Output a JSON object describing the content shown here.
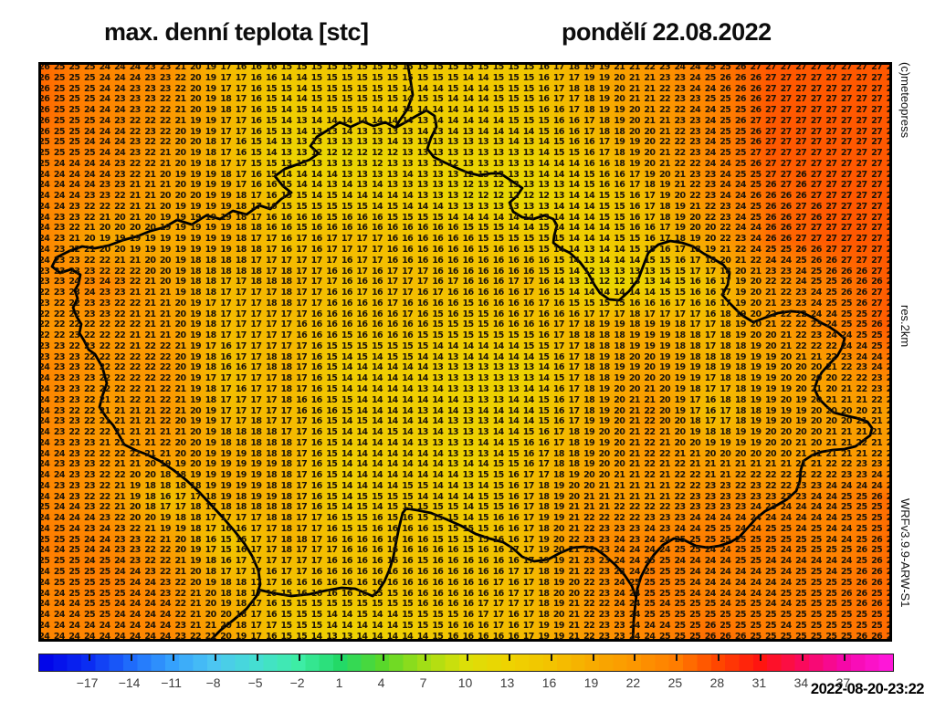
{
  "header": {
    "title": "max. denní teplota [stc]",
    "date": "pondělí 22.08.2022"
  },
  "side_labels": {
    "copyright": "(c)meteopress",
    "resolution": "res.2km",
    "model": "WRFv3.9.9-ARW-S1",
    "timestamp": "2022-08-20-23:22"
  },
  "chart_data": {
    "type": "heatmap",
    "title": "max. denní teplota [stc]",
    "subtitle": "pondělí 22.08.2022",
    "grid": {
      "cols": 57,
      "rows": 54
    },
    "control_grid": {
      "col_index": [
        0,
        4,
        8,
        12,
        16,
        20,
        24,
        28,
        32,
        36,
        40,
        44,
        48,
        52,
        56
      ],
      "row_index": [
        0,
        4,
        8,
        12,
        16,
        20,
        24,
        28,
        32,
        36,
        40,
        44,
        48,
        53
      ],
      "values": [
        [
          26,
          24,
          23,
          17,
          15,
          15,
          15,
          15,
          15,
          19,
          22,
          25,
          27,
          27,
          27
        ],
        [
          26,
          24,
          22,
          18,
          14,
          15,
          14,
          14,
          15,
          18,
          21,
          24,
          27,
          27,
          27
        ],
        [
          25,
          24,
          21,
          17,
          13,
          12,
          13,
          13,
          13,
          16,
          20,
          24,
          27,
          27,
          27
        ],
        [
          24,
          23,
          20,
          19,
          15,
          14,
          14,
          12,
          12,
          14,
          17,
          23,
          26,
          27,
          27
        ],
        [
          24,
          19,
          19,
          19,
          16,
          17,
          16,
          16,
          15,
          14,
          16,
          20,
          26,
          27,
          27
        ],
        [
          23,
          24,
          20,
          17,
          18,
          16,
          17,
          16,
          17,
          12,
          13,
          16,
          22,
          25,
          27
        ],
        [
          22,
          22,
          21,
          17,
          17,
          16,
          16,
          15,
          16,
          18,
          19,
          17,
          21,
          24,
          27
        ],
        [
          24,
          22,
          22,
          16,
          18,
          14,
          14,
          13,
          13,
          18,
          20,
          18,
          19,
          21,
          25
        ],
        [
          24,
          21,
          22,
          17,
          17,
          15,
          14,
          13,
          14,
          18,
          22,
          16,
          19,
          20,
          21
        ],
        [
          24,
          22,
          21,
          19,
          18,
          14,
          14,
          13,
          16,
          19,
          22,
          20,
          20,
          21,
          22
        ],
        [
          24,
          22,
          16,
          19,
          18,
          14,
          15,
          14,
          17,
          21,
          21,
          23,
          23,
          24,
          26
        ],
        [
          25,
          24,
          21,
          15,
          18,
          16,
          16,
          15,
          17,
          23,
          24,
          25,
          25,
          24,
          26
        ],
        [
          24,
          25,
          23,
          18,
          16,
          16,
          16,
          16,
          17,
          22,
          25,
          24,
          24,
          25,
          26
        ],
        [
          24,
          24,
          24,
          20,
          15,
          13,
          14,
          16,
          17,
          22,
          24,
          26,
          25,
          25,
          26
        ]
      ]
    },
    "colorbar": {
      "domain": [
        -20.5,
        40.5
      ],
      "ticks": [
        -17,
        -14,
        -11,
        -8,
        -5,
        -2,
        1,
        4,
        7,
        10,
        13,
        16,
        19,
        22,
        25,
        28,
        31,
        34,
        37
      ],
      "stops": [
        {
          "v": -20.5,
          "c": "#0000e8"
        },
        {
          "v": -17,
          "c": "#0b2df2"
        },
        {
          "v": -14,
          "c": "#1f6bfb"
        },
        {
          "v": -11,
          "c": "#35a1fd"
        },
        {
          "v": -8,
          "c": "#4cc6f2"
        },
        {
          "v": -5,
          "c": "#45ded2"
        },
        {
          "v": -2,
          "c": "#3deda5"
        },
        {
          "v": 1,
          "c": "#23d967"
        },
        {
          "v": 4,
          "c": "#59d82b"
        },
        {
          "v": 7,
          "c": "#a2de16"
        },
        {
          "v": 10,
          "c": "#dcdf08"
        },
        {
          "v": 13,
          "c": "#eed301"
        },
        {
          "v": 16,
          "c": "#f3c300"
        },
        {
          "v": 19,
          "c": "#f8ab00"
        },
        {
          "v": 22,
          "c": "#fc9700"
        },
        {
          "v": 25,
          "c": "#ff7d00"
        },
        {
          "v": 28,
          "c": "#ff4600"
        },
        {
          "v": 31,
          "c": "#ff1510"
        },
        {
          "v": 34,
          "c": "#fa0a5c"
        },
        {
          "v": 37,
          "c": "#f508a8"
        },
        {
          "v": 40.5,
          "c": "#ff1ae0"
        }
      ]
    },
    "borders": [
      [
        404,
        0,
        407,
        16,
        410,
        36,
        404,
        52,
        395,
        65,
        391,
        72
      ],
      [
        391,
        72,
        380,
        66,
        367,
        70,
        355,
        65,
        342,
        71,
        330,
        66,
        318,
        74,
        305,
        82,
        298,
        92,
        307,
        100,
        297,
        107,
        284,
        112,
        270,
        117,
        259,
        125,
        268,
        136,
        277,
        143,
        266,
        150,
        254,
        161,
        242,
        157,
        228,
        167,
        213,
        163,
        199,
        172,
        184,
        168,
        168,
        178,
        152,
        173,
        138,
        181,
        123,
        185,
        108,
        191,
        93,
        195,
        77,
        201,
        62,
        204,
        48,
        202,
        34,
        207,
        20,
        214,
        15,
        224,
        24,
        231,
        36,
        227,
        46,
        233,
        44,
        243,
        40,
        250,
        43,
        259,
        38,
        269,
        42,
        279,
        47,
        287,
        45,
        297,
        50,
        305,
        55,
        315,
        62,
        320,
        70,
        334,
        75,
        352,
        70,
        366,
        67,
        378,
        75,
        390,
        82,
        398,
        88,
        408,
        94,
        419
      ],
      [
        94,
        419,
        106,
        425,
        119,
        430,
        133,
        437,
        148,
        447,
        162,
        458,
        176,
        471,
        190,
        486,
        203,
        500,
        215,
        514,
        226,
        528,
        234,
        541,
        241,
        557,
        243,
        572,
        239,
        585,
        228,
        599,
        214,
        611,
        200,
        622,
        190,
        632,
        182,
        641
      ],
      [
        241,
        578,
        258,
        582,
        277,
        585,
        297,
        583,
        315,
        579,
        332,
        576,
        347,
        577,
        359,
        582,
        366,
        585,
        372,
        580,
        379,
        569,
        385,
        555,
        389,
        541,
        392,
        525,
        395,
        510,
        399,
        494,
        403,
        489,
        415,
        491,
        430,
        494,
        447,
        501,
        463,
        508,
        479,
        517,
        494,
        522,
        509,
        526,
        520,
        533,
        530,
        542,
        543,
        547,
        558,
        545,
        571,
        538,
        585,
        532,
        598,
        531,
        610,
        533,
        621,
        541,
        632,
        551,
        642,
        562,
        650,
        574,
        654,
        585
      ],
      [
        391,
        72,
        402,
        66,
        414,
        59,
        425,
        53,
        434,
        59,
        436,
        71,
        430,
        83,
        426,
        95,
        433,
        104,
        445,
        110,
        458,
        116,
        470,
        121,
        482,
        124,
        496,
        122,
        506,
        122
      ],
      [
        506,
        122,
        518,
        130,
        530,
        138,
        524,
        147,
        516,
        154,
        520,
        164,
        530,
        170,
        542,
        172,
        554,
        168,
        564,
        172,
        568,
        179,
        565,
        190,
        564,
        198,
        572,
        204,
        582,
        209,
        593,
        219,
        602,
        231,
        609,
        244,
        615,
        253,
        625,
        260,
        636,
        261,
        647,
        251,
        657,
        238,
        663,
        222,
        668,
        209,
        679,
        200,
        692,
        196,
        705,
        198,
        717,
        202,
        729,
        210,
        740,
        216,
        750,
        222,
        757,
        231,
        755,
        244,
        749,
        255,
        758,
        265,
        770,
        277,
        783,
        285,
        796,
        280,
        810,
        275,
        824,
        273,
        836,
        274,
        848,
        280,
        858,
        286,
        866,
        290,
        875,
        296,
        883,
        303,
        880,
        313,
        875,
        322,
        866,
        331,
        858,
        340,
        853,
        349,
        850,
        358,
        855,
        369,
        863,
        377,
        871,
        384,
        883,
        387,
        896,
        390,
        908,
        394,
        913,
        401,
        911,
        409,
        903,
        415,
        895,
        421,
        883,
        424,
        870,
        425,
        858,
        427,
        847,
        431,
        838,
        437,
        835,
        447,
        834,
        459,
        830,
        470,
        820,
        479,
        808,
        486,
        796,
        492,
        786,
        500,
        778,
        509,
        768,
        520,
        758,
        526,
        746,
        530,
        733,
        532,
        720,
        530,
        708,
        524,
        696,
        522,
        684,
        529,
        674,
        540,
        666,
        552,
        660,
        564,
        656,
        577,
        654,
        592,
        652,
        612,
        651,
        636
      ]
    ]
  }
}
